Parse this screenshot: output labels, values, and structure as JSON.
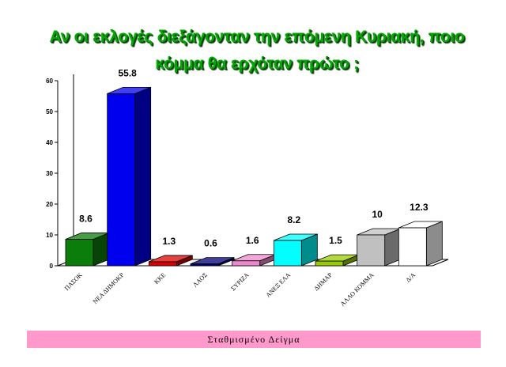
{
  "title_line1": "Αν οι εκλογές διεξάγονταν την επόμενη Κυριακή, ποιο",
  "title_line2": "κόμμα θα ερχόταν πρώτο ;",
  "footer": "Σταθμισμένο Δείγμα",
  "chart_data": {
    "type": "bar",
    "categories": [
      "ΠΑΣΟΚ",
      "ΝΕΑ ΔΗΜΟΚΡ",
      "ΚΚΕ",
      "ΛΑΟΣ",
      "ΣΥΡΙΖΑ",
      "ΑΝΕΞ ΕΛΑ",
      "ΔΗΜΑΡ",
      "ΑΛΛΟ ΚΟΜΜΑ",
      "Δ/Α"
    ],
    "values": [
      8.6,
      55.8,
      1.3,
      0.6,
      1.6,
      8.2,
      1.5,
      10,
      12.3
    ],
    "data_labels": [
      "8.6",
      "55.8",
      "1.3",
      "0.6",
      "1.6",
      "8.2",
      "1.5",
      "10",
      "12.3"
    ],
    "colors": [
      "#0a7d0a",
      "#0000ee",
      "#dd0000",
      "#00007a",
      "#ee88cc",
      "#00ffff",
      "#99cc00",
      "#c0c0c0",
      "#ffffff"
    ],
    "ylim": [
      0,
      60
    ],
    "yticks": [
      "0",
      "10",
      "20",
      "30",
      "40",
      "50",
      "60"
    ],
    "grid": false,
    "style": "3d"
  }
}
